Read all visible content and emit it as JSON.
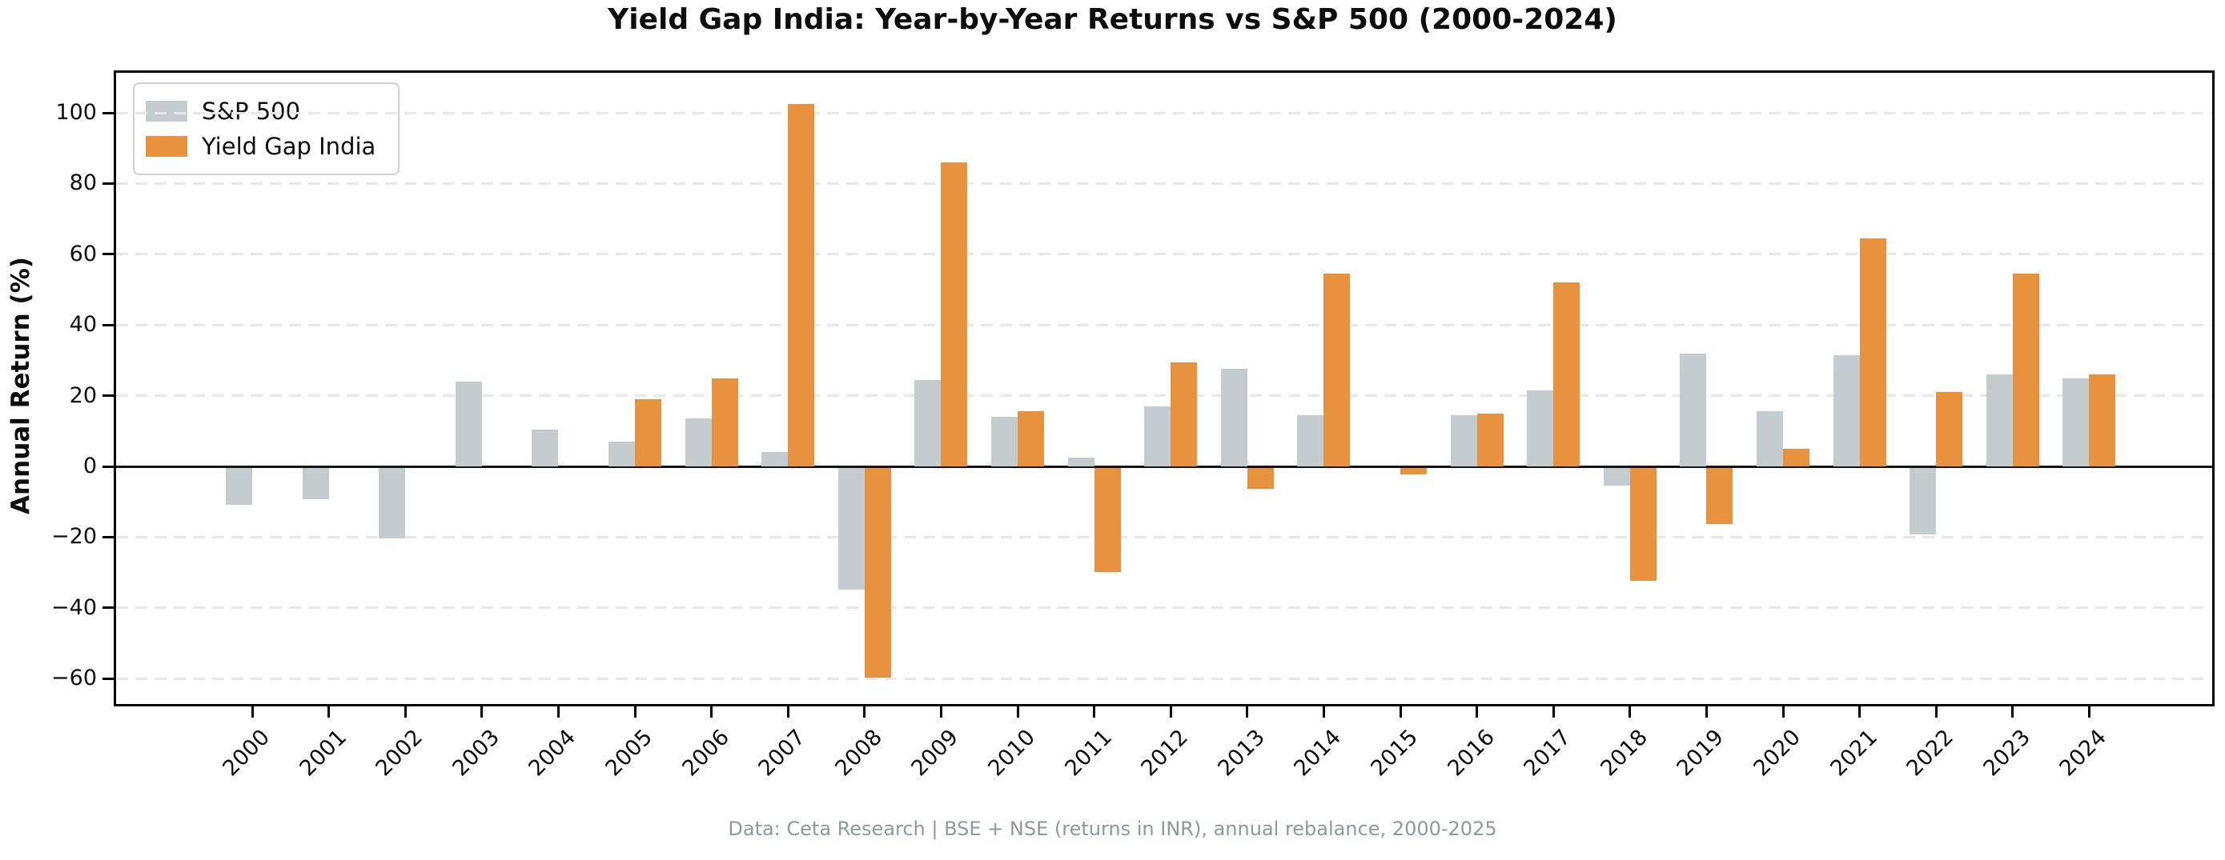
{
  "title": "Yield Gap India: Year-by-Year Returns vs S&P 500 (2000-2024)",
  "ylabel": "Annual Return (%)",
  "footer": "Data: Ceta Research | BSE + NSE (returns in INR), annual rebalance, 2000-2025",
  "colors": {
    "sp500": "#c5ccd0",
    "yield_gap_india": "#e8923f",
    "grid": "#e7e7e7",
    "zero_line": "#141414",
    "footer_text": "#8b9a9a"
  },
  "legend": [
    {
      "label": "S&P 500",
      "color": "#c5ccd0"
    },
    {
      "label": "Yield Gap India",
      "color": "#e8923f"
    }
  ],
  "chart_data": {
    "type": "bar",
    "title": "Yield Gap India: Year-by-Year Returns vs S&P 500 (2000-2024)",
    "xlabel": "",
    "ylabel": "Annual Return (%)",
    "categories": [
      "2000",
      "2001",
      "2002",
      "2003",
      "2004",
      "2005",
      "2006",
      "2007",
      "2008",
      "2009",
      "2010",
      "2011",
      "2012",
      "2013",
      "2014",
      "2015",
      "2016",
      "2017",
      "2018",
      "2019",
      "2020",
      "2021",
      "2022",
      "2023",
      "2024"
    ],
    "series": [
      {
        "name": "S&P 500",
        "color": "#c5ccd0",
        "values": [
          -10.5,
          -9,
          -20,
          24,
          10.5,
          7,
          13.5,
          4,
          -34.5,
          24.5,
          14,
          2.5,
          17,
          27.5,
          14.5,
          0,
          14.5,
          21.5,
          -5,
          32,
          15.5,
          31.5,
          -19,
          26,
          25
        ]
      },
      {
        "name": "Yield Gap India",
        "color": "#e8923f",
        "values": [
          null,
          null,
          null,
          null,
          null,
          19,
          25,
          102.5,
          -59.5,
          86,
          15.5,
          -29.5,
          29.5,
          -6,
          54.5,
          -2,
          15,
          52,
          -32,
          -16,
          5,
          64.5,
          21,
          54.5,
          26
        ]
      }
    ],
    "yticks": [
      100,
      80,
      60,
      40,
      20,
      0,
      -20,
      -40,
      -60
    ],
    "ytick_labels": [
      "100",
      "80",
      "60",
      "40",
      "20",
      "0",
      "−20",
      "−40",
      "−60"
    ],
    "ylim": [
      -67,
      111
    ],
    "grid": "horizontal-dashed",
    "legend_position": "upper-left",
    "bar_orientation": "vertical",
    "x_tick_rotation_deg": 45
  }
}
